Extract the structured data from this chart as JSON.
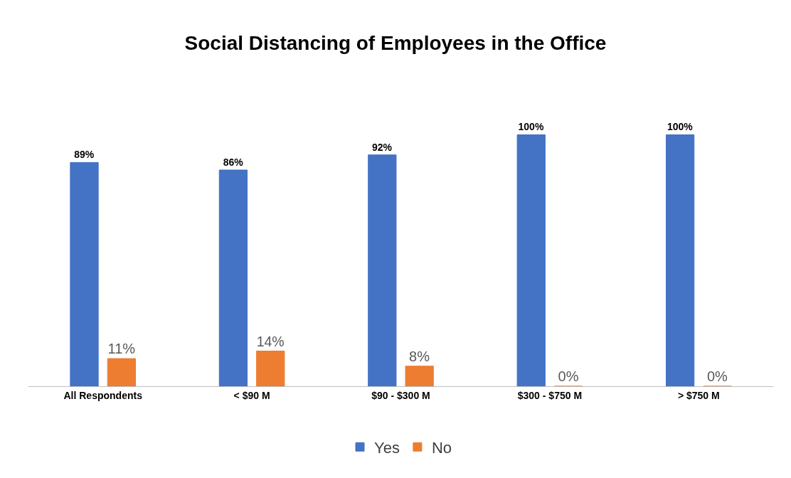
{
  "chart_data": {
    "type": "bar",
    "title": "Social Distancing of Employees in the Office",
    "categories": [
      "All Respondents",
      "< $90 M",
      "$90 - $300 M",
      "$300 - $750 M",
      "> $750 M"
    ],
    "series": [
      {
        "name": "Yes",
        "color": "#4472c4",
        "values": [
          89,
          86,
          92,
          100,
          100
        ],
        "value_labels": [
          "89%",
          "86%",
          "92%",
          "100%",
          "100%"
        ]
      },
      {
        "name": "No",
        "color": "#ed7d31",
        "values": [
          11,
          14,
          8,
          0,
          0
        ],
        "value_labels": [
          "11%",
          "14%",
          "8%",
          "0%",
          "0%"
        ]
      }
    ],
    "legend": "bottom"
  }
}
